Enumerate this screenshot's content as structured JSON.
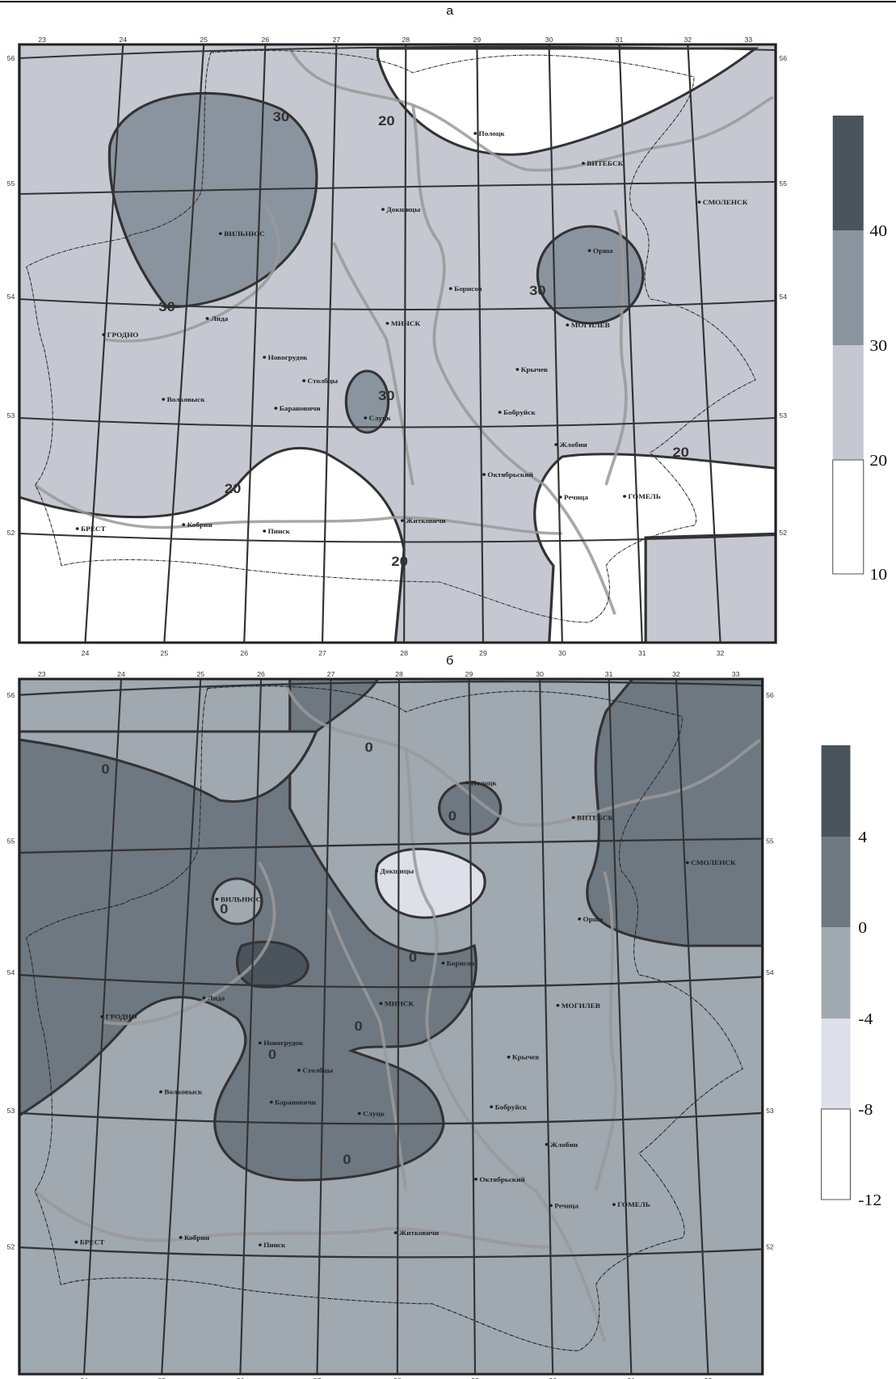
{
  "places": [
    "Полоцк",
    "ВИТЕБСК",
    "СМОЛЕНСК",
    "ВИЛЬНЮС",
    "ГРОДНО",
    "Лида",
    "МИНСК",
    "Борисов",
    "Орша",
    "МОГИЛЕВ",
    "Бобруйск",
    "Слуцк",
    "Барановичи",
    "Новогрудок",
    "Пинск",
    "БРЕСТ",
    "Жлобин",
    "Речица",
    "ГОМЕЛЬ",
    "Житковичи",
    "Волковыск",
    "Кобрин",
    "Октябрьский",
    "Докшицы",
    "Крычев",
    "Столбцы"
  ],
  "lon_ticks_top": [
    "23",
    "24",
    "25",
    "26",
    "27",
    "28",
    "29",
    "30",
    "31",
    "32",
    "33"
  ],
  "lon_ticks_bottom": [
    "24",
    "25",
    "26",
    "27",
    "28",
    "29",
    "30",
    "31",
    "32"
  ],
  "lat_ticks": [
    "56",
    "55",
    "54",
    "53",
    "52"
  ],
  "panels": [
    {
      "label": "а",
      "legend": [
        "40",
        "30",
        "20",
        "10"
      ],
      "contour_labels": [
        "30",
        "20",
        "30",
        "30",
        "30",
        "20",
        "20",
        "20"
      ]
    },
    {
      "label": "б",
      "legend": [
        "4",
        "0",
        "-4",
        "-8",
        "-12"
      ],
      "contour_labels": [
        "0",
        "0",
        "0",
        "0",
        "0",
        "0",
        "0",
        "0"
      ]
    }
  ]
}
